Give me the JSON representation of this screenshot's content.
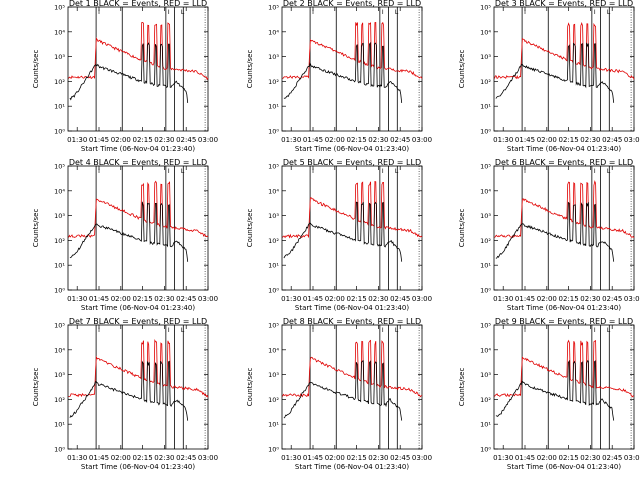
{
  "figure": {
    "ylabel": "Counts/sec",
    "xlabel": "Start Time (06-Nov-04 01:23:40)",
    "x_ticks": [
      "01:30",
      "01:45",
      "02:00",
      "02:15",
      "02:30",
      "02:45",
      "03:00"
    ],
    "y_ticks": [
      "10⁰",
      "10¹",
      "10²",
      "10³",
      "10⁴",
      "10⁵"
    ],
    "colors": {
      "events": "#000000",
      "lld": "#e00000"
    },
    "vline_markers": [
      "I",
      "I",
      "I",
      "L",
      "L",
      "L"
    ]
  },
  "chart_data": [
    {
      "type": "line",
      "title": "Det 1 BLACK = Events, RED = LLD"
    },
    {
      "type": "line",
      "title": "Det 2 BLACK = Events, RED = LLD"
    },
    {
      "type": "line",
      "title": "Det 3 BLACK = Events, RED = LLD"
    },
    {
      "type": "line",
      "title": "Det 4 BLACK = Events, RED = LLD"
    },
    {
      "type": "line",
      "title": "Det 5 BLACK = Events, RED = LLD"
    },
    {
      "type": "line",
      "title": "Det 6 BLACK = Events, RED = LLD"
    },
    {
      "type": "line",
      "title": "Det 7 BLACK = Events, RED = LLD"
    },
    {
      "type": "line",
      "title": "Det 8 BLACK = Events, RED = LLD"
    },
    {
      "type": "line",
      "title": "Det 9 BLACK = Events, RED = LLD"
    }
  ],
  "shared_series": {
    "x_range": [
      "01:23:40",
      "03:00"
    ],
    "y_log_range": [
      1,
      100000
    ],
    "vertical_lines": [
      "01:43",
      "02:01",
      "02:31",
      "02:37",
      "02:43"
    ],
    "series": [
      {
        "name": "LLD",
        "points": [
          [
            "01:24",
            150
          ],
          [
            "01:42",
            150
          ],
          [
            "01:43",
            5000
          ],
          [
            "01:46",
            4000
          ],
          [
            "02:00",
            1700
          ],
          [
            "02:15",
            700
          ],
          [
            "02:30",
            350
          ],
          [
            "02:40",
            300
          ],
          [
            "02:52",
            250
          ],
          [
            "03:00",
            130
          ]
        ],
        "spikes": [
          "02:15",
          "02:19",
          "02:24",
          "02:28",
          "02:33"
        ],
        "spike_peak": 20000
      },
      {
        "name": "Events",
        "points": [
          [
            "01:25",
            20
          ],
          [
            "01:29",
            30
          ],
          [
            "01:43",
            500
          ],
          [
            "01:45",
            400
          ],
          [
            "02:00",
            200
          ],
          [
            "02:15",
            100
          ],
          [
            "02:25",
            70
          ],
          [
            "02:35",
            60
          ],
          [
            "02:38",
            100
          ],
          [
            "02:45",
            40
          ],
          [
            "02:46",
            15
          ]
        ],
        "spikes": [
          "02:15",
          "02:19",
          "02:24",
          "02:28",
          "02:33"
        ],
        "spike_peak": 3000
      }
    ]
  }
}
